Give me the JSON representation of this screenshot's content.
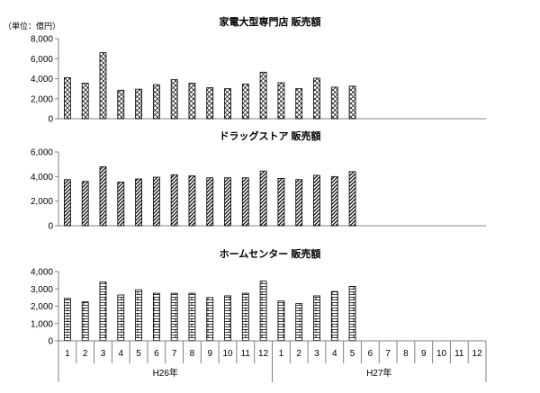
{
  "unit_label": "（単位：億円）",
  "x_axis": {
    "months": [
      "1",
      "2",
      "3",
      "4",
      "5",
      "6",
      "7",
      "8",
      "9",
      "10",
      "11",
      "12",
      "1",
      "2",
      "3",
      "4",
      "5",
      "6",
      "7",
      "8",
      "9",
      "10",
      "11",
      "12"
    ],
    "years": [
      "H26年",
      "H27年"
    ]
  },
  "chart_data": [
    {
      "type": "bar",
      "title": "家電大型専門店 販売額",
      "pattern": "crosshatch",
      "ylim": [
        0,
        8000
      ],
      "yticks": [
        "0",
        "2,000",
        "4,000",
        "6,000",
        "8,000"
      ],
      "values": [
        4100,
        3550,
        6600,
        2850,
        2950,
        3400,
        3900,
        3550,
        3100,
        3000,
        3450,
        4650,
        3600,
        3000,
        4050,
        3150,
        3250
      ]
    },
    {
      "type": "bar",
      "title": "ドラッグストア 販売額",
      "pattern": "diagonal",
      "ylim": [
        0,
        6000
      ],
      "yticks": [
        "0",
        "2,000",
        "4,000",
        "6,000"
      ],
      "values": [
        3750,
        3600,
        4800,
        3550,
        3800,
        3950,
        4150,
        4050,
        3900,
        3900,
        3900,
        4450,
        3850,
        3750,
        4100,
        4000,
        4400
      ]
    },
    {
      "type": "bar",
      "title": "ホームセンター 販売額",
      "pattern": "brick",
      "ylim": [
        0,
        4000
      ],
      "yticks": [
        "0",
        "1,000",
        "2,000",
        "3,000",
        "4,000"
      ],
      "values": [
        2450,
        2250,
        3400,
        2650,
        2950,
        2750,
        2750,
        2750,
        2500,
        2600,
        2750,
        3450,
        2300,
        2150,
        2600,
        2850,
        3150
      ]
    }
  ]
}
